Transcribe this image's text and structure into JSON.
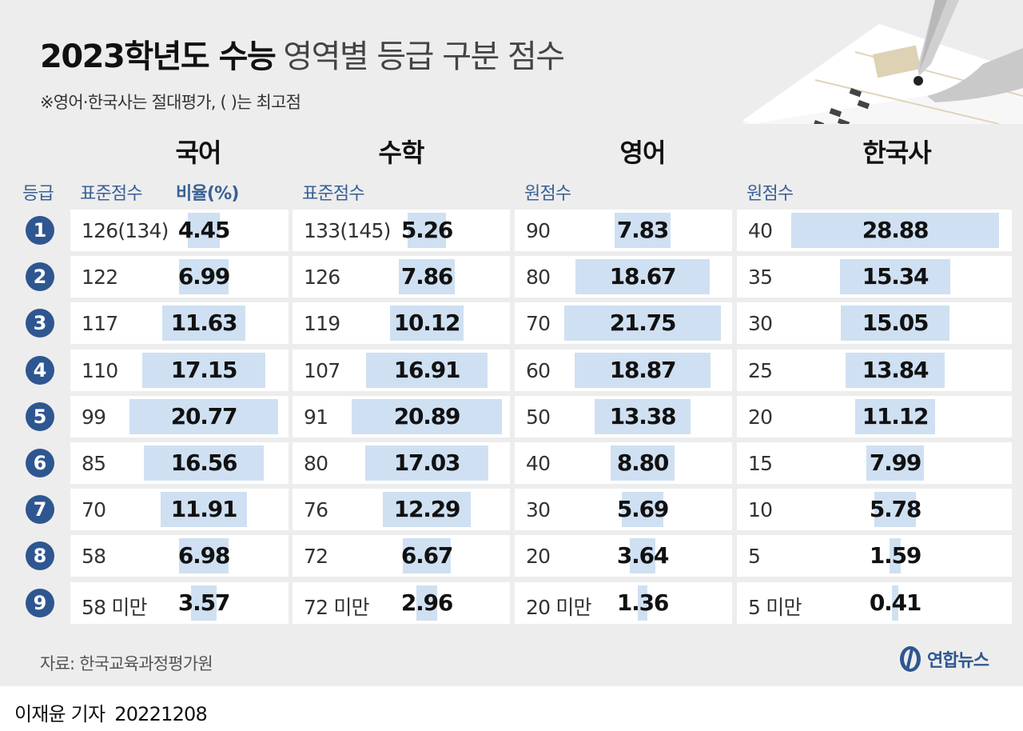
{
  "header": {
    "title_bold": "2023학년도 수능",
    "title_light": "영역별 등급 구분 점수",
    "subtitle": "※영어·한국사는 절대평가, (  )는 최고점"
  },
  "columns": {
    "grade_label": "등급",
    "korean": {
      "subject": "국어",
      "score_label": "표준점수",
      "ratio_label": "비율(%)"
    },
    "math": {
      "subject": "수학",
      "score_label": "표준점수"
    },
    "english": {
      "subject": "영어",
      "score_label": "원점수"
    },
    "history": {
      "subject": "한국사",
      "score_label": "원점수"
    }
  },
  "chart_data": {
    "type": "table",
    "title": "2023학년도 수능 영역별 등급 구분 점수",
    "grades": [
      "1",
      "2",
      "3",
      "4",
      "5",
      "6",
      "7",
      "8",
      "9"
    ],
    "series": [
      {
        "name": "국어",
        "scores": [
          "126(134)",
          "122",
          "117",
          "110",
          "99",
          "85",
          "70",
          "58",
          "58 미만"
        ],
        "ratios": [
          4.45,
          6.99,
          11.63,
          17.15,
          20.77,
          16.56,
          11.91,
          6.98,
          3.57
        ],
        "labels": [
          "4.45",
          "6.99",
          "11.63",
          "17.15",
          "20.77",
          "16.56",
          "11.91",
          "6.98",
          "3.57"
        ]
      },
      {
        "name": "수학",
        "scores": [
          "133(145)",
          "126",
          "119",
          "107",
          "91",
          "80",
          "76",
          "72",
          "72 미만"
        ],
        "ratios": [
          5.26,
          7.86,
          10.12,
          16.91,
          20.89,
          17.03,
          12.29,
          6.67,
          2.96
        ],
        "labels": [
          "5.26",
          "7.86",
          "10.12",
          "16.91",
          "20.89",
          "17.03",
          "12.29",
          "6.67",
          "2.96"
        ]
      },
      {
        "name": "영어",
        "scores": [
          "90",
          "80",
          "70",
          "60",
          "50",
          "40",
          "30",
          "20",
          "20 미만"
        ],
        "ratios": [
          7.83,
          18.67,
          21.75,
          18.87,
          13.38,
          8.8,
          5.69,
          3.64,
          1.36
        ],
        "labels": [
          "7.83",
          "18.67",
          "21.75",
          "18.87",
          "13.38",
          "8.80",
          "5.69",
          "3.64",
          "1.36"
        ]
      },
      {
        "name": "한국사",
        "scores": [
          "40",
          "35",
          "30",
          "25",
          "20",
          "15",
          "10",
          "5",
          "5 미만"
        ],
        "ratios": [
          28.88,
          15.34,
          15.05,
          13.84,
          11.12,
          7.99,
          5.78,
          1.59,
          0.41
        ],
        "labels": [
          "28.88",
          "15.34",
          "15.05",
          "13.84",
          "11.12",
          "7.99",
          "5.78",
          "1.59",
          "0.41"
        ]
      }
    ],
    "colors": {
      "bar": "#cfe0f2",
      "grade_circle": "#2e5690",
      "header_text": "#3a5f95",
      "panel": "#ededed"
    }
  },
  "footer": {
    "source": "자료: 한국교육과정평가원",
    "logo_text": "연합뉴스",
    "logo_icon": "yonhap-logo-icon",
    "byline_name": "이재윤 기자",
    "byline_date": "20221208"
  }
}
